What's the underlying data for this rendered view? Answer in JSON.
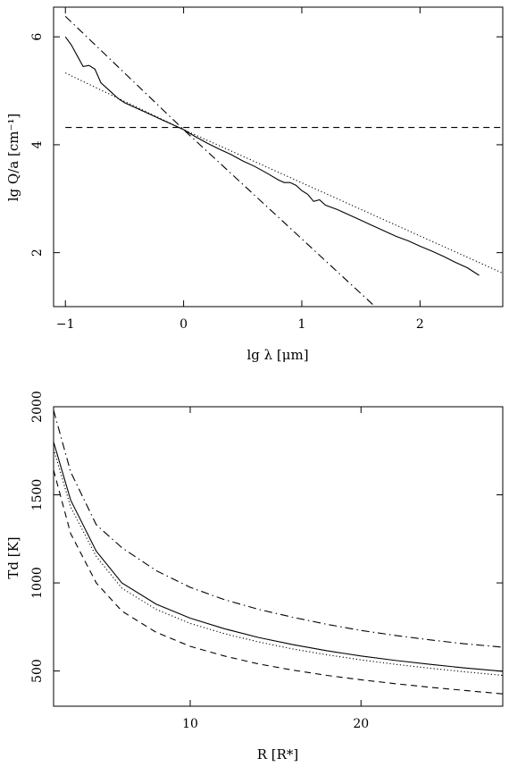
{
  "chart_data": [
    {
      "type": "line",
      "xlabel": "lg λ [μm]",
      "ylabel": "lg Q/a [cm⁻¹]",
      "xlim": [
        -1.1,
        2.7
      ],
      "ylim": [
        1.0,
        6.55
      ],
      "xticks": [
        -1,
        0,
        1,
        2
      ],
      "xtick_labels": [
        "−1",
        "0",
        "1",
        "2"
      ],
      "yticks": [
        2,
        4,
        6
      ],
      "ytick_labels": [
        "2",
        "4",
        "6"
      ],
      "series": [
        {
          "style": "solid",
          "x": [
            -1.0,
            -0.95,
            -0.9,
            -0.85,
            -0.8,
            -0.75,
            -0.7,
            -0.65,
            -0.6,
            -0.55,
            -0.5,
            -0.4,
            -0.3,
            -0.2,
            -0.1,
            0.0,
            0.1,
            0.2,
            0.3,
            0.4,
            0.5,
            0.6,
            0.7,
            0.8,
            0.85,
            0.9,
            0.95,
            1.0,
            1.05,
            1.1,
            1.15,
            1.2,
            1.3,
            1.4,
            1.5,
            1.6,
            1.7,
            1.8,
            1.9,
            2.0,
            2.1,
            2.2,
            2.3,
            2.4,
            2.5
          ],
          "y": [
            6.0,
            5.85,
            5.65,
            5.45,
            5.47,
            5.4,
            5.15,
            5.05,
            4.95,
            4.85,
            4.78,
            4.68,
            4.58,
            4.48,
            4.38,
            4.28,
            4.15,
            4.03,
            3.92,
            3.82,
            3.7,
            3.6,
            3.48,
            3.35,
            3.3,
            3.3,
            3.25,
            3.15,
            3.08,
            2.95,
            2.98,
            2.88,
            2.8,
            2.7,
            2.6,
            2.5,
            2.4,
            2.3,
            2.22,
            2.12,
            2.03,
            1.93,
            1.82,
            1.72,
            1.58
          ]
        },
        {
          "style": "dotted",
          "x": [
            -1.0,
            0.0,
            2.7
          ],
          "y": [
            5.33,
            4.28,
            1.62
          ]
        },
        {
          "style": "dashed",
          "x": [
            -1.0,
            2.7
          ],
          "y": [
            4.32,
            4.32
          ]
        },
        {
          "style": "dashdot",
          "x": [
            -1.0,
            0.0,
            1.62
          ],
          "y": [
            6.38,
            4.28,
            1.0
          ]
        }
      ]
    },
    {
      "type": "line",
      "xlabel": "R [R*]",
      "ylabel": "Td [K]",
      "xlim": [
        2,
        28.3
      ],
      "ylim": [
        300,
        2000
      ],
      "xticks": [
        10,
        20
      ],
      "xtick_labels": [
        "10",
        "20"
      ],
      "yticks": [
        500,
        1000,
        1500,
        2000
      ],
      "ytick_labels": [
        "500",
        "1000",
        "1500",
        "2000"
      ],
      "series": [
        {
          "style": "solid",
          "x": [
            2,
            3,
            4.5,
            6,
            8,
            10,
            12,
            14,
            16,
            18,
            20,
            22,
            24,
            26,
            28.3
          ],
          "y": [
            1800,
            1470,
            1180,
            1000,
            880,
            800,
            740,
            690,
            650,
            615,
            585,
            560,
            538,
            518,
            498
          ]
        },
        {
          "style": "dotted",
          "x": [
            2,
            3,
            4.5,
            6,
            8,
            10,
            12,
            14,
            16,
            18,
            20,
            22,
            24,
            26,
            28.3
          ],
          "y": [
            1760,
            1430,
            1150,
            970,
            850,
            770,
            712,
            665,
            625,
            592,
            563,
            538,
            516,
            496,
            475
          ]
        },
        {
          "style": "dashed",
          "x": [
            2,
            3,
            4.5,
            6,
            8,
            10,
            12,
            14,
            16,
            18,
            20,
            22,
            24,
            26,
            28.3
          ],
          "y": [
            1640,
            1280,
            1000,
            840,
            720,
            640,
            585,
            540,
            505,
            475,
            450,
            428,
            408,
            390,
            370
          ]
        },
        {
          "style": "dashdot",
          "x": [
            2,
            3,
            4.5,
            6,
            8,
            10,
            12,
            14,
            16,
            18,
            20,
            22,
            24,
            26,
            28.3
          ],
          "y": [
            1980,
            1630,
            1330,
            1200,
            1070,
            975,
            905,
            850,
            805,
            765,
            730,
            702,
            677,
            655,
            635
          ]
        }
      ]
    }
  ]
}
